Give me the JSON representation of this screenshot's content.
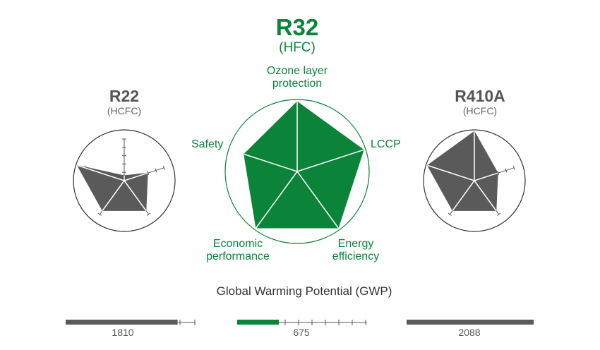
{
  "colors": {
    "green": "#0b843a",
    "dark_gray": "#5a5a5a",
    "axis_gray": "#555555",
    "text_gray": "#444444"
  },
  "chart_data": [
    {
      "type": "radar",
      "title": "R22",
      "subtitle": "(HCFC)",
      "axes": [
        "Ozone layer protection",
        "LCCP",
        "Energy efficiency",
        "Economic performance",
        "Safety"
      ],
      "values": [
        0.1,
        0.5,
        0.75,
        0.75,
        1.0
      ],
      "max": 1.0,
      "color": "#5a5a5a"
    },
    {
      "type": "radar",
      "title": "R32",
      "subtitle": "(HFC)",
      "axes": [
        "Ozone layer protection",
        "LCCP",
        "Energy efficiency",
        "Economic performance",
        "Safety"
      ],
      "axis_labels": [
        [
          "Ozone layer",
          "protection"
        ],
        [
          "LCCP"
        ],
        [
          "Energy",
          "efficiency"
        ],
        [
          "Economic",
          "performance"
        ],
        [
          "Safety"
        ]
      ],
      "values": [
        1.0,
        1.0,
        1.0,
        1.0,
        0.8
      ],
      "max": 1.0,
      "color": "#0b843a"
    },
    {
      "type": "radar",
      "title": "R410A",
      "subtitle": "(HCFC)",
      "axes": [
        "Ozone layer protection",
        "LCCP",
        "Energy efficiency",
        "Economic performance",
        "Safety"
      ],
      "values": [
        1.0,
        0.5,
        0.75,
        0.75,
        1.0
      ],
      "max": 1.0,
      "color": "#5a5a5a"
    },
    {
      "type": "bar",
      "title": "Global Warming Potential (GWP)",
      "categories": [
        "R22",
        "R32",
        "R410A"
      ],
      "values": [
        1810,
        675,
        2088
      ],
      "value_labels": [
        "1810",
        "675",
        "2088"
      ],
      "xlim": [
        0,
        2100
      ],
      "colors": [
        "#5a5a5a",
        "#0b843a",
        "#5a5a5a"
      ]
    }
  ]
}
